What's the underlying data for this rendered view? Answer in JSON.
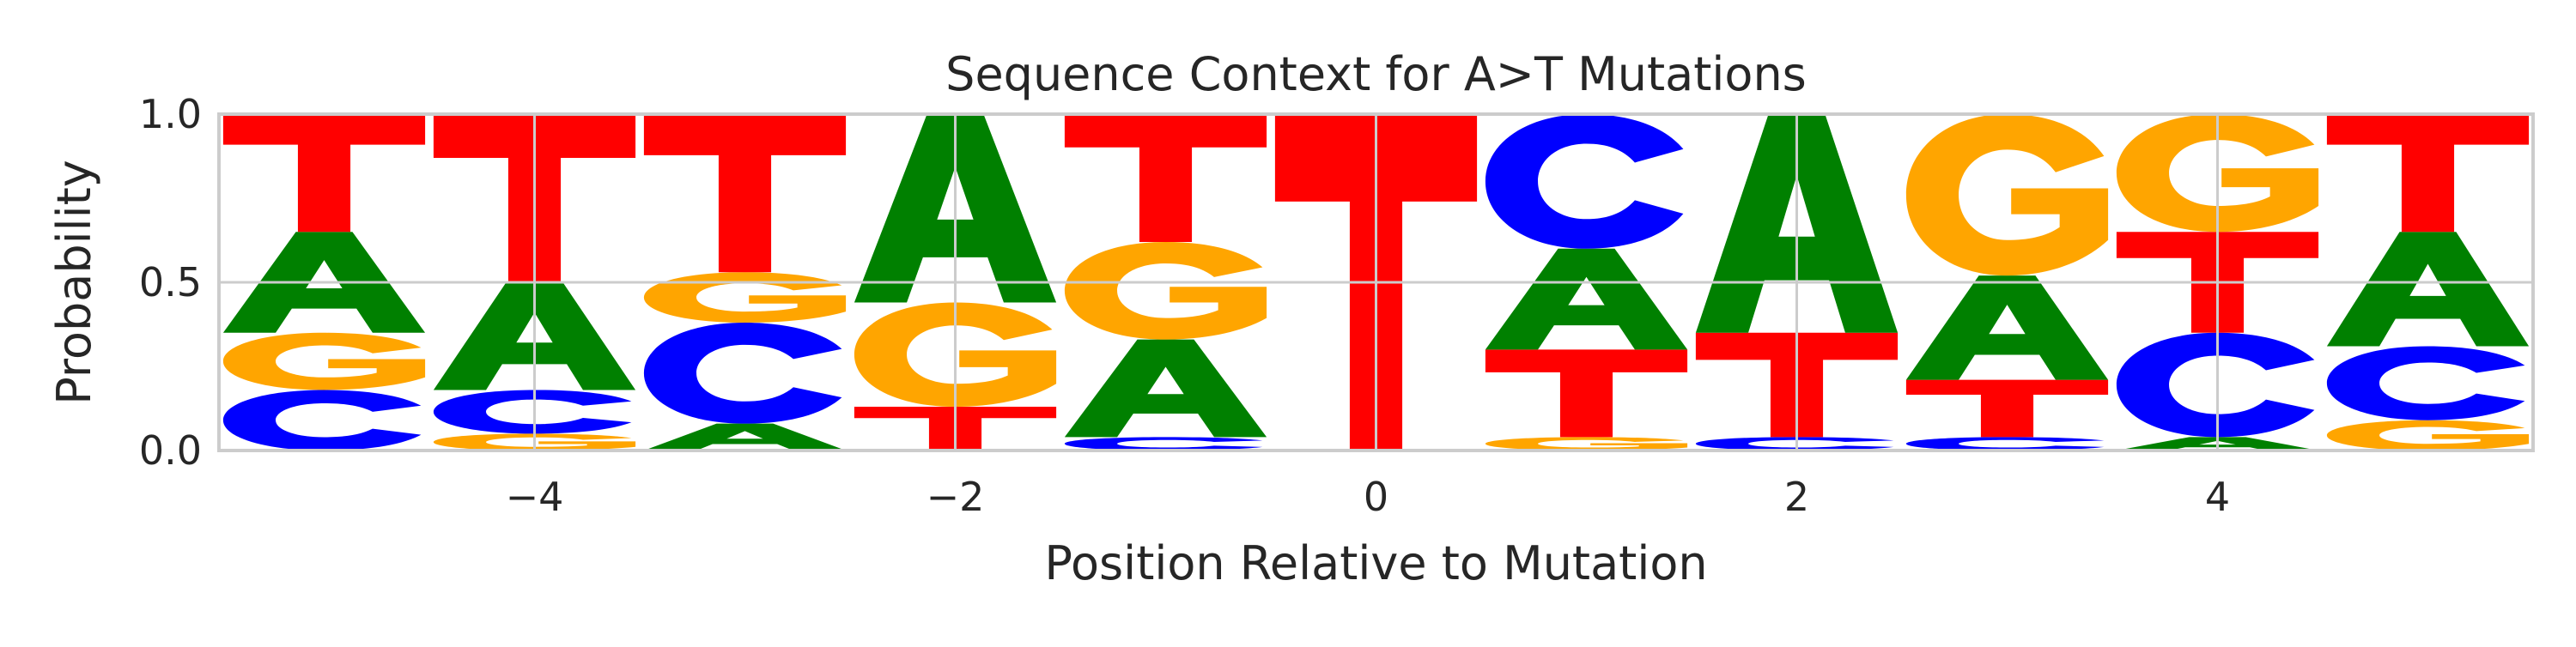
{
  "chart_data": {
    "type": "sequence-logo",
    "title": "Sequence Context for A>T Mutations",
    "xlabel": "Position Relative to Mutation",
    "ylabel": "Probability",
    "xlim": [
      -5.5,
      5.5
    ],
    "ylim": [
      0,
      1
    ],
    "x_ticks": [
      -4,
      -2,
      0,
      2,
      4
    ],
    "x_tick_labels": [
      "−4",
      "−2",
      "0",
      "2",
      "4"
    ],
    "y_ticks": [
      0,
      0.5,
      1
    ],
    "y_tick_labels": [
      "0.0",
      "0.5",
      "1.0"
    ],
    "grid": true,
    "letter_colors": {
      "A": "#008000",
      "C": "#0000ff",
      "G": "#ffa500",
      "T": "#ff0000"
    },
    "positions": [
      {
        "x": -5,
        "stack": [
          {
            "letter": "C",
            "value": 0.18
          },
          {
            "letter": "G",
            "value": 0.17
          },
          {
            "letter": "A",
            "value": 0.3
          },
          {
            "letter": "T",
            "value": 0.35
          }
        ]
      },
      {
        "x": -4,
        "stack": [
          {
            "letter": "G",
            "value": 0.05
          },
          {
            "letter": "C",
            "value": 0.13
          },
          {
            "letter": "A",
            "value": 0.32
          },
          {
            "letter": "T",
            "value": 0.5
          }
        ]
      },
      {
        "x": -3,
        "stack": [
          {
            "letter": "A",
            "value": 0.08
          },
          {
            "letter": "C",
            "value": 0.3
          },
          {
            "letter": "G",
            "value": 0.15
          },
          {
            "letter": "T",
            "value": 0.47
          }
        ]
      },
      {
        "x": -2,
        "stack": [
          {
            "letter": "T",
            "value": 0.13
          },
          {
            "letter": "G",
            "value": 0.31
          },
          {
            "letter": "A",
            "value": 0.56
          }
        ]
      },
      {
        "x": -1,
        "stack": [
          {
            "letter": "C",
            "value": 0.04
          },
          {
            "letter": "A",
            "value": 0.29
          },
          {
            "letter": "G",
            "value": 0.29
          },
          {
            "letter": "T",
            "value": 0.38
          }
        ]
      },
      {
        "x": 0,
        "stack": [
          {
            "letter": "T",
            "value": 1.0
          }
        ]
      },
      {
        "x": 1,
        "stack": [
          {
            "letter": "G",
            "value": 0.04
          },
          {
            "letter": "T",
            "value": 0.26
          },
          {
            "letter": "A",
            "value": 0.3
          },
          {
            "letter": "C",
            "value": 0.4
          }
        ]
      },
      {
        "x": 2,
        "stack": [
          {
            "letter": "C",
            "value": 0.04
          },
          {
            "letter": "T",
            "value": 0.31
          },
          {
            "letter": "A",
            "value": 0.65
          }
        ]
      },
      {
        "x": 3,
        "stack": [
          {
            "letter": "C",
            "value": 0.04
          },
          {
            "letter": "T",
            "value": 0.17
          },
          {
            "letter": "A",
            "value": 0.31
          },
          {
            "letter": "G",
            "value": 0.48
          }
        ]
      },
      {
        "x": 4,
        "stack": [
          {
            "letter": "A",
            "value": 0.04
          },
          {
            "letter": "C",
            "value": 0.31
          },
          {
            "letter": "T",
            "value": 0.3
          },
          {
            "letter": "G",
            "value": 0.35
          }
        ]
      },
      {
        "x": 5,
        "stack": [
          {
            "letter": "G",
            "value": 0.09
          },
          {
            "letter": "C",
            "value": 0.22
          },
          {
            "letter": "A",
            "value": 0.34
          },
          {
            "letter": "T",
            "value": 0.35
          }
        ]
      }
    ]
  }
}
